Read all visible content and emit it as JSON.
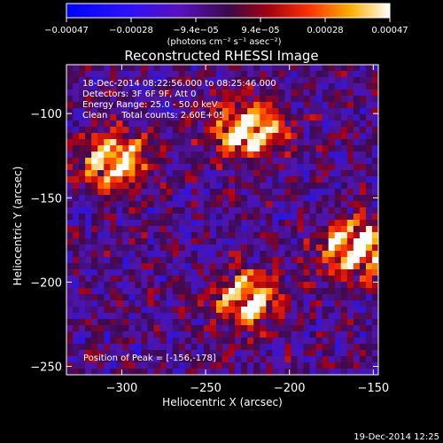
{
  "colorbar": {
    "tick_labels": [
      "-0.00047",
      "-0.00028",
      "-9.4e-05",
      "9.4e-05",
      "0.00028",
      "0.00047"
    ],
    "unit_label": "(photons cm⁻² s⁻¹ asec⁻²)",
    "range": [
      -0.00047,
      0.00047
    ]
  },
  "title": "Reconstructed RHESSI Image",
  "info": {
    "line1": "18-Dec-2014 08:22:56.000 to 08:25:46.000",
    "line2": "Detectors: 3F 6F 9F, Att 0",
    "line3": "Energy Range: 25.0 - 50.0 keV",
    "line4": "Clean     Total counts: 2.60E+05"
  },
  "peak_label": "Position of Peak = [-156,-178]",
  "timestamp": "19-Dec-2014 12:25",
  "colors": {
    "background": "#000000",
    "text": "#ffffff"
  },
  "chart_data": {
    "type": "heatmap",
    "title": "Reconstructed RHESSI Image",
    "xlabel": "Heliocentric X (arcsec)",
    "ylabel": "Heliocentric Y (arcsec)",
    "xlim": [
      -333,
      -147
    ],
    "ylim": [
      -255,
      -71
    ],
    "xticks": [
      -300,
      -250,
      -200,
      -150
    ],
    "xtick_labels": [
      "−300",
      "−250",
      "−200",
      "−150"
    ],
    "yticks": [
      -100,
      -150,
      -200,
      -250
    ],
    "ytick_labels": [
      "−100",
      "−150",
      "−200",
      "−250"
    ],
    "colormap": "blue-purple-red-yellow-white (RHESSI diverging)",
    "sources": [
      {
        "x": -305,
        "y": -128,
        "intensity": 0.85
      },
      {
        "x": -225,
        "y": -110,
        "intensity": 0.95
      },
      {
        "x": -225,
        "y": -210,
        "intensity": 0.8
      },
      {
        "x": -160,
        "y": -180,
        "intensity": 0.9
      }
    ]
  }
}
